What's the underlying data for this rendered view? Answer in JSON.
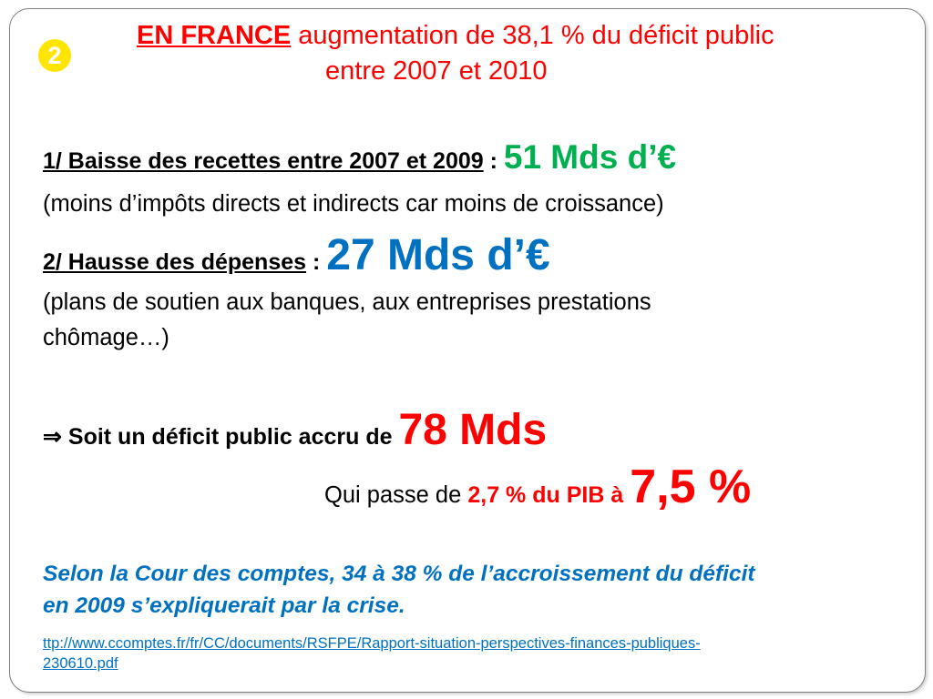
{
  "slide": {
    "badge": "2",
    "title": {
      "highlight": "EN FRANCE",
      "rest_line1": " augmentation de 38,1 % du déficit public",
      "line2": "entre 2007 et 2010"
    },
    "point1": {
      "label": "1/ Baisse des recettes entre 2007 et  2009",
      "sep": " : ",
      "value": "51 Mds d’€",
      "note": "(moins d’impôts directs et indirects car moins de croissance)"
    },
    "point2": {
      "label": "2/ Hausse des dépenses",
      "sep": " : ",
      "value": "27 Mds d’€",
      "note_line1": "(plans de soutien aux banques, aux entreprises prestations",
      "note_line2": "chômage…)"
    },
    "conclusion": {
      "arrow": "⇒",
      "text": " Soit un déficit public accru de ",
      "value": "78 Mds"
    },
    "pib": {
      "prefix": "Qui passe de ",
      "from": "2,7 % du PIB à ",
      "to": "7,5 %"
    },
    "cour": {
      "line1": "Selon la Cour des comptes, 34 à 38 % de l’accroissement du déficit",
      "line2": "en 2009 s’expliquerait par la crise."
    },
    "link": {
      "line1": "ttp://www.ccomptes.fr/fr/CC/documents/RSFPE/Rapport-situation-perspectives-finances-publiques-",
      "line2": "230610.pdf"
    }
  }
}
